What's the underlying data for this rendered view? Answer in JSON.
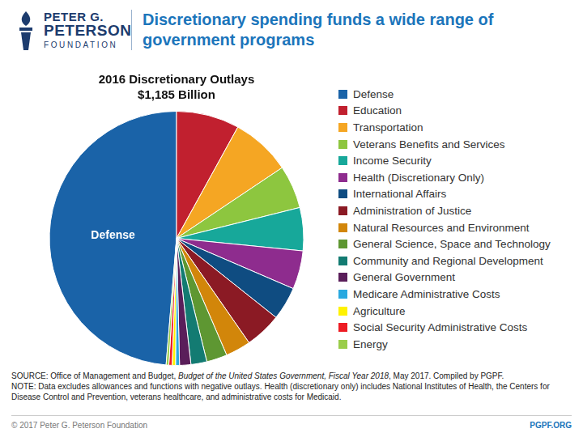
{
  "chart_data": {
    "type": "pie",
    "title": "2016 Discretionary Outlays",
    "subtitle": "$1,185 Billion",
    "categories": [
      "Defense",
      "Education",
      "Transportation",
      "Veterans Benefits and Services",
      "Income Security",
      "Health (Discretionary Only)",
      "International Affairs",
      "Administration of Justice",
      "Natural Resources and Environment",
      "General Science, Space and Technology",
      "Community and Regional Development",
      "General Government",
      "Medicare Administrative Costs",
      "Agriculture",
      "Social Security Administrative Costs",
      "Energy"
    ],
    "values": [
      577,
      95,
      90,
      65,
      65,
      58,
      50,
      55,
      38,
      31,
      24,
      17,
      6,
      5,
      5,
      4
    ],
    "colors": [
      "#1a63a8",
      "#c1202f",
      "#f5a623",
      "#8dc63f",
      "#17a89a",
      "#8e2c8e",
      "#0f4c81",
      "#8b1a24",
      "#d2860a",
      "#5e9732",
      "#137b72",
      "#5a1e5a",
      "#29a9e0",
      "#fff200",
      "#ed1c24",
      "#9acd4a"
    ],
    "legend": "right",
    "annotations": [
      {
        "text": "Defense",
        "category": "Defense"
      }
    ]
  },
  "page": {
    "logo": [
      "PETER G.",
      "PETERSON",
      "FOUNDATION"
    ],
    "headline": "Discretionary spending funds a wide range of government programs",
    "source": [
      "SOURCE: Office of Management and Budget, ",
      "Budget of the United States Government, Fiscal Year 2018",
      ", May 2017. Compiled by PGPF."
    ],
    "note": "NOTE: Data excludes allowances and functions with negative outlays. Health (discretionary only) includes National Institutes of Health, the Centers for Disease Control and Prevention, veterans healthcare, and administrative costs for Medicaid.",
    "copyright": "© 2017 Peter G. Peterson Foundation",
    "url": "PGPF.ORG"
  }
}
